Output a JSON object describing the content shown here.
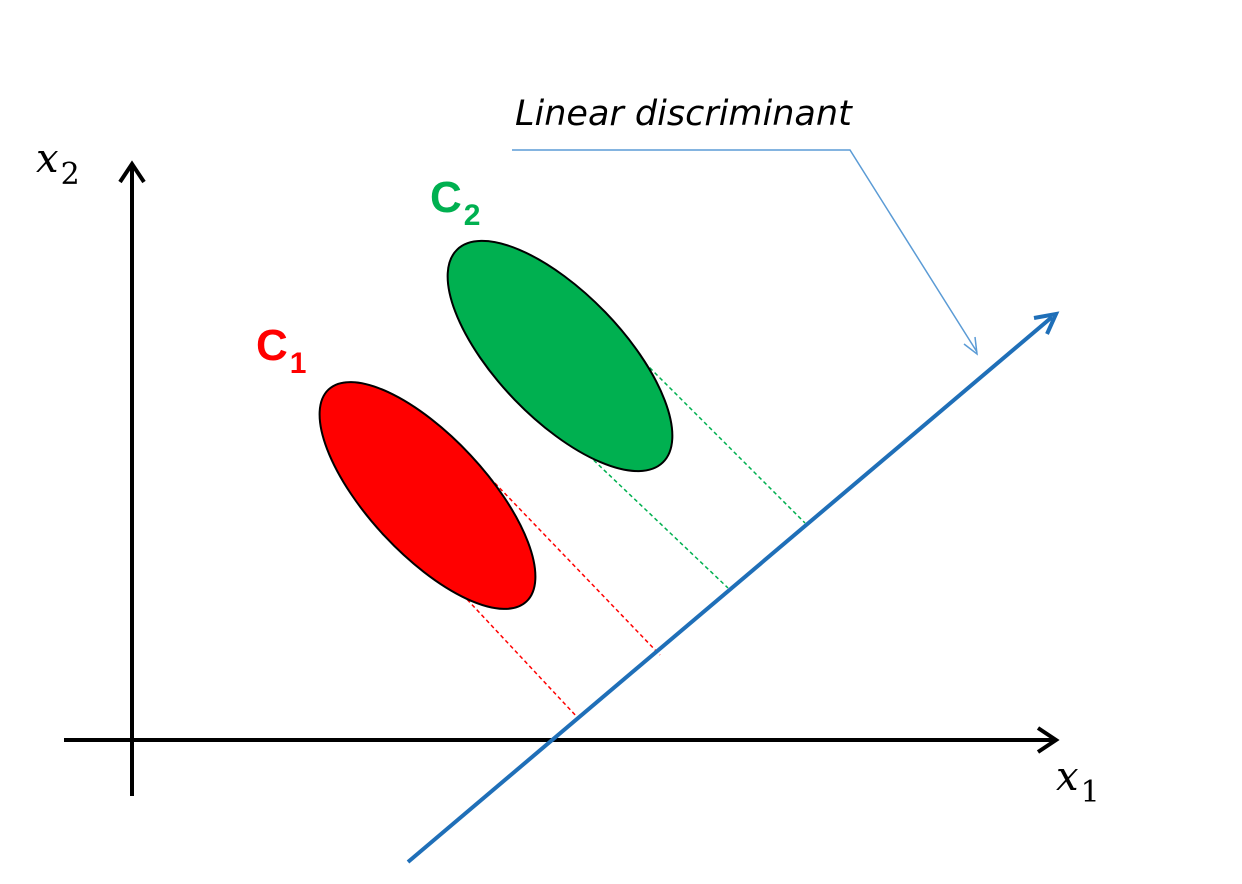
{
  "axes": {
    "x_label_base": "x",
    "x_label_sub": "1",
    "y_label_base": "x",
    "y_label_sub": "2"
  },
  "classes": [
    {
      "id": "c1",
      "label_base": "C",
      "label_sub": "1",
      "color": "#ff0000"
    },
    {
      "id": "c2",
      "label_base": "C",
      "label_sub": "2",
      "color": "#00b050"
    }
  ],
  "discriminant": {
    "label": "Linear discriminant",
    "line_color": "#1f6fb8",
    "pointer_color": "#5b9bd5"
  }
}
